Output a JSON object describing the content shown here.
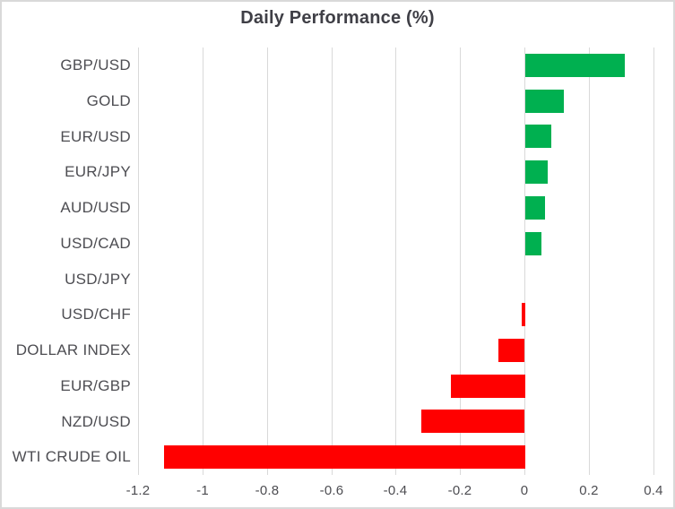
{
  "chart_data": {
    "type": "bar",
    "orientation": "horizontal",
    "title": "Daily Performance (%)",
    "categories": [
      "GBP/USD",
      "GOLD",
      "EUR/USD",
      "EUR/JPY",
      "AUD/USD",
      "USD/CAD",
      "USD/JPY",
      "USD/CHF",
      "DOLLAR INDEX",
      "EUR/GBP",
      "NZD/USD",
      "WTI CRUDE OIL"
    ],
    "values": [
      0.31,
      0.12,
      0.08,
      0.07,
      0.06,
      0.05,
      0.0,
      -0.01,
      -0.08,
      -0.23,
      -0.32,
      -1.12
    ],
    "xlabel": "",
    "ylabel": "",
    "xlim": [
      -1.2,
      0.4
    ],
    "x_ticks": [
      -1.2,
      -1,
      -0.8,
      -0.6,
      -0.4,
      -0.2,
      0,
      0.2,
      0.4
    ],
    "x_tick_labels": [
      "-1.2",
      "-1",
      "-0.8",
      "-0.6",
      "-0.4",
      "-0.2",
      "0",
      "0.2",
      "0.4"
    ],
    "grid": true,
    "legend": false,
    "colors": {
      "positive_bar": "#00B050",
      "negative_bar": "#FF0000",
      "gridline": "#D9D9D9",
      "title_text": "#3F3F46",
      "axis_label_text": "#4D4D52",
      "frame_border": "#D9D9D9",
      "background": "#FFFFFF"
    }
  }
}
